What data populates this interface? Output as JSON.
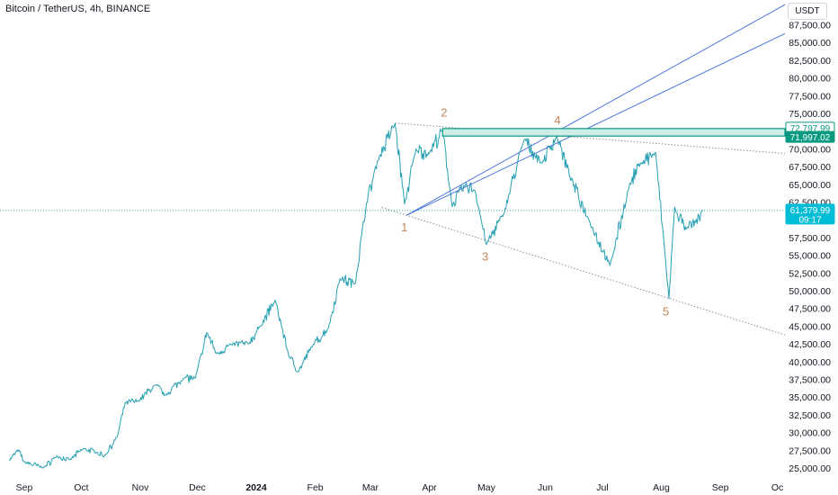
{
  "header": {
    "title": "Bitcoin / TetherUS, 4h, BINANCE",
    "currency": "USDT"
  },
  "chart_data": {
    "type": "line",
    "title": "Bitcoin / TetherUS, 4h, BINANCE",
    "xlabel": "",
    "ylabel": "",
    "x_ticks": [
      "Sep",
      "Oct",
      "Nov",
      "Dec",
      "2024",
      "Feb",
      "Mar",
      "Apr",
      "May",
      "Jun",
      "Jul",
      "Aug",
      "Sep",
      "Oc"
    ],
    "y_ticks": [
      87500,
      85000,
      82500,
      80000,
      77500,
      75000,
      72500,
      70000,
      67500,
      65000,
      62500,
      60000,
      57500,
      55000,
      52500,
      50000,
      47500,
      45000,
      42500,
      40000,
      37500,
      35000,
      32500,
      30000,
      27500,
      25000
    ],
    "ylim": [
      24500,
      89500
    ],
    "series": [
      {
        "color": "#26a0b2",
        "points": [
          [
            "2023-08-24",
            26100
          ],
          [
            "2023-08-29",
            27600
          ],
          [
            "2023-09-01",
            25900
          ],
          [
            "2023-09-11",
            25100
          ],
          [
            "2023-09-18",
            26700
          ],
          [
            "2023-09-25",
            26200
          ],
          [
            "2023-10-02",
            27800
          ],
          [
            "2023-10-09",
            27300
          ],
          [
            "2023-10-13",
            26700
          ],
          [
            "2023-10-20",
            29500
          ],
          [
            "2023-10-24",
            34200
          ],
          [
            "2023-10-31",
            34500
          ],
          [
            "2023-11-09",
            36800
          ],
          [
            "2023-11-14",
            35300
          ],
          [
            "2023-11-24",
            37800
          ],
          [
            "2023-11-30",
            37700
          ],
          [
            "2023-12-04",
            41800
          ],
          [
            "2023-12-06",
            44200
          ],
          [
            "2023-12-11",
            41200
          ],
          [
            "2023-12-19",
            42500
          ],
          [
            "2023-12-28",
            42600
          ],
          [
            "2024-01-03",
            45000
          ],
          [
            "2024-01-11",
            48700
          ],
          [
            "2024-01-18",
            41000
          ],
          [
            "2024-01-23",
            38600
          ],
          [
            "2024-01-31",
            42500
          ],
          [
            "2024-02-08",
            44800
          ],
          [
            "2024-02-14",
            51800
          ],
          [
            "2024-02-22",
            51000
          ],
          [
            "2024-02-28",
            62500
          ],
          [
            "2024-03-05",
            68500
          ],
          [
            "2024-03-14",
            73700
          ],
          [
            "2024-03-19",
            62200
          ],
          [
            "2024-03-25",
            70000
          ],
          [
            "2024-04-01",
            69500
          ],
          [
            "2024-04-08",
            72700
          ],
          [
            "2024-04-13",
            62000
          ],
          [
            "2024-04-20",
            65000
          ],
          [
            "2024-04-25",
            64200
          ],
          [
            "2024-05-01",
            56600
          ],
          [
            "2024-05-10",
            60800
          ],
          [
            "2024-05-21",
            71500
          ],
          [
            "2024-05-30",
            68000
          ],
          [
            "2024-06-07",
            71900
          ],
          [
            "2024-06-14",
            66100
          ],
          [
            "2024-06-24",
            60000
          ],
          [
            "2024-07-05",
            53600
          ],
          [
            "2024-07-15",
            64700
          ],
          [
            "2024-07-21",
            68100
          ],
          [
            "2024-07-29",
            69500
          ],
          [
            "2024-08-05",
            49000
          ],
          [
            "2024-08-08",
            61800
          ],
          [
            "2024-08-14",
            58600
          ],
          [
            "2024-08-19",
            59800
          ],
          [
            "2024-08-23",
            61380
          ]
        ]
      }
    ],
    "annotations": [
      {
        "label": "1",
        "date": "2024-03-20",
        "value": 60700
      },
      {
        "label": "2",
        "date": "2024-04-08",
        "value": 72700
      },
      {
        "label": "3",
        "date": "2024-05-01",
        "value": 56600
      },
      {
        "label": "4",
        "date": "2024-06-08",
        "value": 71900
      },
      {
        "label": "5",
        "date": "2024-08-05",
        "value": 49000
      }
    ],
    "zone": {
      "upper": 72797.99,
      "lower": 71997.02
    },
    "last_price": {
      "value": 61379.99,
      "label": "61,379.99",
      "countdown": "09:17"
    },
    "zone_labels": {
      "upper": "72,797.99",
      "lower": "71,997.02"
    }
  }
}
